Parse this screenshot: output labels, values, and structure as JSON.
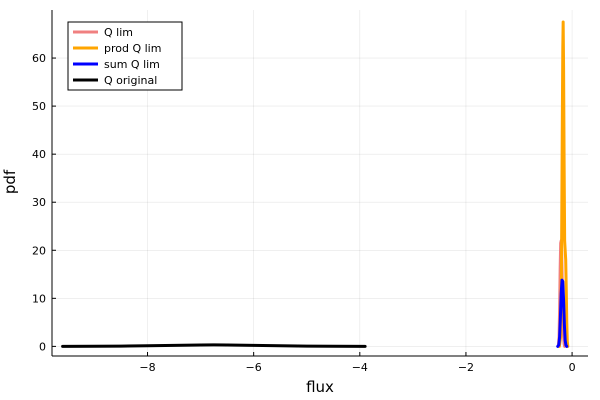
{
  "chart_data": {
    "type": "line",
    "title": "",
    "xlabel": "flux",
    "ylabel": "pdf",
    "xlim": [
      -9.8,
      0.3
    ],
    "ylim": [
      -2,
      70
    ],
    "xticks": [
      -8,
      -6,
      -4,
      -2,
      0
    ],
    "xtick_labels": [
      "−8",
      "−6",
      "−4",
      "−2",
      "0"
    ],
    "yticks": [
      0,
      10,
      20,
      30,
      40,
      50,
      60
    ],
    "ytick_labels": [
      "0",
      "10",
      "20",
      "30",
      "40",
      "50",
      "60"
    ],
    "grid": true,
    "legend_position": "top-left",
    "series": [
      {
        "name": "Q lim",
        "color": "#f08080",
        "points": [
          [
            -0.26,
            0
          ],
          [
            -0.245,
            2
          ],
          [
            -0.235,
            8
          ],
          [
            -0.225,
            16
          ],
          [
            -0.215,
            21.5
          ],
          [
            -0.205,
            22
          ],
          [
            -0.195,
            19
          ],
          [
            -0.185,
            13
          ],
          [
            -0.175,
            7
          ],
          [
            -0.165,
            3
          ],
          [
            -0.15,
            0.5
          ],
          [
            -0.14,
            0
          ]
        ]
      },
      {
        "name": "prod Q lim",
        "color": "#ffa500",
        "points": [
          [
            -0.24,
            0
          ],
          [
            -0.215,
            2
          ],
          [
            -0.205,
            8
          ],
          [
            -0.195,
            25
          ],
          [
            -0.185,
            45
          ],
          [
            -0.175,
            62
          ],
          [
            -0.168,
            67.5
          ],
          [
            -0.16,
            58
          ],
          [
            -0.15,
            38
          ],
          [
            -0.14,
            22
          ],
          [
            -0.13,
            20
          ],
          [
            -0.12,
            18
          ],
          [
            -0.11,
            12
          ],
          [
            -0.1,
            5
          ],
          [
            -0.09,
            1
          ],
          [
            -0.08,
            0
          ]
        ]
      },
      {
        "name": "sum Q lim",
        "color": "#0000ff",
        "points": [
          [
            -0.27,
            0
          ],
          [
            -0.25,
            0.3
          ],
          [
            -0.235,
            2
          ],
          [
            -0.22,
            6
          ],
          [
            -0.205,
            11
          ],
          [
            -0.19,
            13.8
          ],
          [
            -0.175,
            13.5
          ],
          [
            -0.16,
            9.5
          ],
          [
            -0.145,
            4.5
          ],
          [
            -0.13,
            1.2
          ],
          [
            -0.115,
            0.2
          ],
          [
            -0.1,
            0
          ]
        ]
      },
      {
        "name": "Q original",
        "color": "#000000",
        "points": [
          [
            -9.6,
            0
          ],
          [
            -9.0,
            0.02
          ],
          [
            -8.5,
            0.06
          ],
          [
            -8.0,
            0.13
          ],
          [
            -7.5,
            0.22
          ],
          [
            -7.0,
            0.3
          ],
          [
            -6.75,
            0.32
          ],
          [
            -6.5,
            0.3
          ],
          [
            -6.0,
            0.22
          ],
          [
            -5.5,
            0.13
          ],
          [
            -5.0,
            0.06
          ],
          [
            -4.5,
            0.02
          ],
          [
            -3.9,
            0
          ]
        ]
      }
    ]
  }
}
